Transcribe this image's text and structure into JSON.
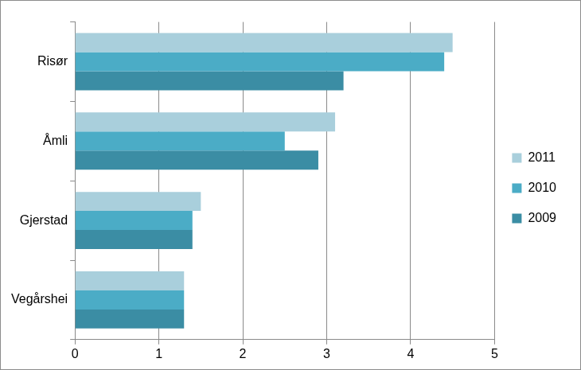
{
  "chart_data": {
    "type": "bar",
    "orientation": "horizontal",
    "categories": [
      "Risør",
      "Åmli",
      "Gjerstad",
      "Vegårshei"
    ],
    "series": [
      {
        "name": "2011",
        "color": "#a9cfdc",
        "values": [
          4.5,
          3.1,
          1.5,
          1.3
        ]
      },
      {
        "name": "2010",
        "color": "#4bacc6",
        "values": [
          4.4,
          2.5,
          1.4,
          1.3
        ]
      },
      {
        "name": "2009",
        "color": "#3b8da4",
        "values": [
          3.2,
          2.9,
          1.4,
          1.3
        ]
      }
    ],
    "xlim": [
      0,
      5
    ],
    "xticks": [
      0,
      1,
      2,
      3,
      4,
      5
    ],
    "grid": true,
    "legend": "right"
  }
}
